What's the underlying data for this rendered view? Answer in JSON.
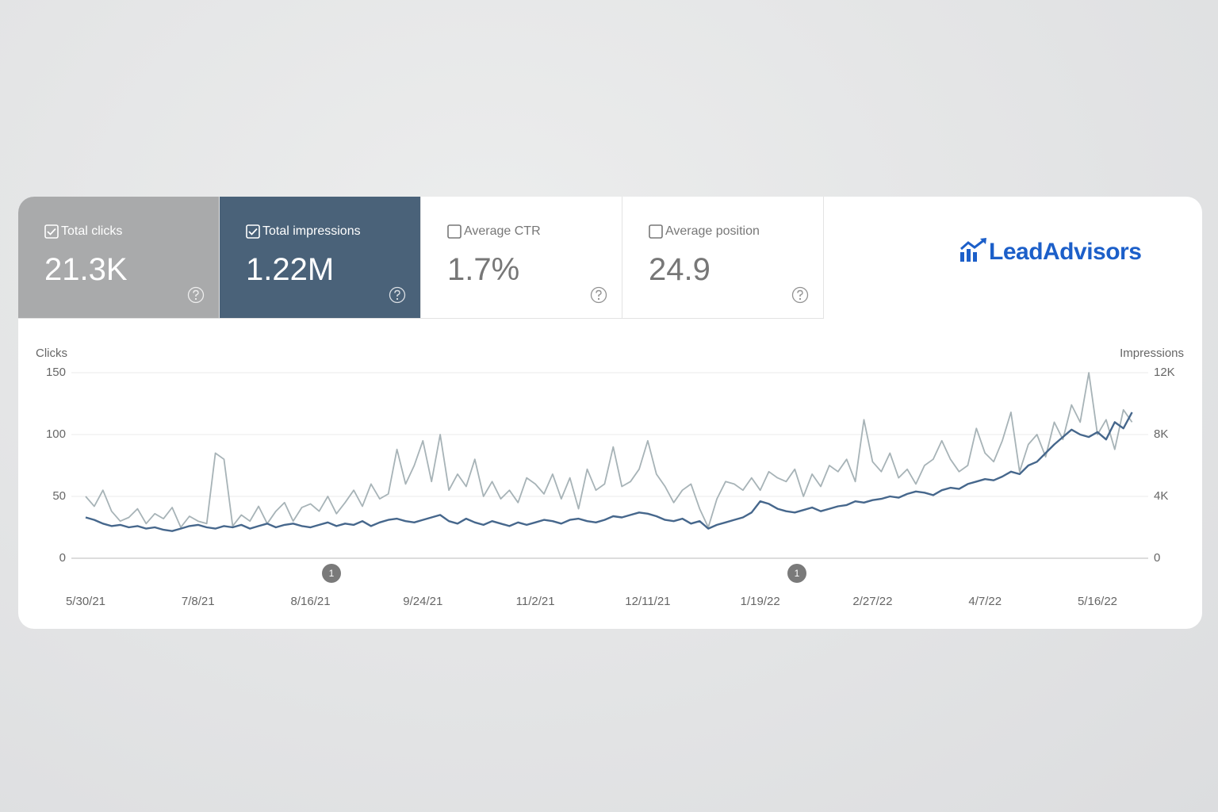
{
  "cards": [
    {
      "label": "Total clicks",
      "value": "21.3K",
      "checked": true
    },
    {
      "label": "Total impressions",
      "value": "1.22M",
      "checked": true
    },
    {
      "label": "Average CTR",
      "value": "1.7%",
      "checked": false
    },
    {
      "label": "Average position",
      "value": "24.9",
      "checked": false
    }
  ],
  "logo": "LeadAdvisors",
  "chart_data": {
    "type": "line",
    "ylabel": "Clicks",
    "y2label": "Impressions",
    "categories": [
      "5/30/21",
      null,
      null,
      null,
      null,
      null,
      null,
      null,
      null,
      null,
      null,
      null,
      null,
      "7/8/21",
      null,
      null,
      null,
      null,
      null,
      null,
      null,
      null,
      null,
      null,
      null,
      null,
      "8/16/21",
      null,
      null,
      null,
      null,
      null,
      null,
      null,
      null,
      null,
      null,
      null,
      null,
      "9/24/21",
      null,
      null,
      null,
      null,
      null,
      null,
      null,
      null,
      null,
      null,
      null,
      null,
      "11/2/21",
      null,
      null,
      null,
      null,
      null,
      null,
      null,
      null,
      null,
      null,
      null,
      null,
      "12/11/21",
      null,
      null,
      null,
      null,
      null,
      null,
      null,
      null,
      null,
      null,
      null,
      null,
      "1/19/22",
      null,
      null,
      null,
      null,
      null,
      null,
      null,
      null,
      null,
      null,
      null,
      null,
      "2/27/22",
      null,
      null,
      null,
      null,
      null,
      null,
      null,
      null,
      null,
      null,
      null,
      null,
      "4/7/22",
      null,
      null,
      null,
      null,
      null,
      null,
      null,
      null,
      null,
      null,
      null,
      null,
      "5/16/22",
      null,
      null,
      null,
      null
    ],
    "series": [
      {
        "name": "Clicks",
        "color": "#a7b3b7",
        "values": [
          50,
          42,
          55,
          38,
          30,
          33,
          40,
          28,
          36,
          32,
          41,
          25,
          34,
          30,
          28,
          85,
          80,
          26,
          35,
          30,
          42,
          28,
          38,
          45,
          30,
          41,
          44,
          38,
          50,
          36,
          45,
          55,
          42,
          60,
          48,
          52,
          88,
          60,
          75,
          95,
          62,
          100,
          55,
          68,
          58,
          80,
          50,
          62,
          48,
          55,
          45,
          65,
          60,
          52,
          68,
          48,
          65,
          40,
          72,
          55,
          60,
          90,
          58,
          62,
          72,
          95,
          68,
          58,
          45,
          55,
          60,
          40,
          25,
          48,
          62,
          60,
          55,
          65,
          55,
          70,
          65,
          62,
          72,
          50,
          68,
          58,
          75,
          70,
          80,
          62,
          112,
          78,
          70,
          85,
          65,
          72,
          60,
          75,
          80,
          95,
          80,
          70,
          75,
          105,
          85,
          78,
          95,
          118,
          70,
          92,
          100,
          82,
          110,
          96,
          124,
          110,
          150,
          100,
          112,
          88,
          120,
          110
        ]
      },
      {
        "name": "Impressions",
        "color": "#46678c",
        "axis": "y2",
        "values": [
          2640,
          2480,
          2240,
          2080,
          2160,
          2000,
          2080,
          1920,
          2000,
          1840,
          1760,
          1920,
          2080,
          2160,
          2000,
          1920,
          2080,
          2000,
          2160,
          1920,
          2080,
          2240,
          2000,
          2160,
          2240,
          2080,
          2000,
          2160,
          2320,
          2080,
          2240,
          2160,
          2400,
          2080,
          2320,
          2480,
          2560,
          2400,
          2320,
          2480,
          2640,
          2800,
          2400,
          2240,
          2560,
          2320,
          2160,
          2400,
          2240,
          2080,
          2320,
          2160,
          2320,
          2480,
          2400,
          2240,
          2480,
          2560,
          2400,
          2320,
          2480,
          2720,
          2640,
          2800,
          2960,
          2880,
          2720,
          2480,
          2400,
          2560,
          2240,
          2400,
          1920,
          2160,
          2320,
          2480,
          2640,
          2960,
          3680,
          3520,
          3200,
          3040,
          2960,
          3120,
          3280,
          3040,
          3200,
          3360,
          3440,
          3680,
          3600,
          3760,
          3840,
          4000,
          3920,
          4160,
          4320,
          4240,
          4080,
          4400,
          4560,
          4480,
          4800,
          4960,
          5120,
          5040,
          5280,
          5600,
          5440,
          6000,
          6240,
          6800,
          7360,
          7840,
          8320,
          8000,
          7840,
          8160,
          7680,
          8800,
          8400,
          9440
        ]
      }
    ],
    "ylim": [
      0,
      150
    ],
    "yticks": [
      0,
      50,
      100,
      150
    ],
    "y2lim": [
      0,
      12000
    ],
    "y2ticks": [
      0,
      {
        "value": 4000,
        "label": "4K"
      },
      {
        "value": 8000,
        "label": "8K"
      },
      {
        "value": 12000,
        "label": "12K"
      }
    ],
    "grid": true,
    "annotations": [
      "1",
      "1"
    ]
  }
}
